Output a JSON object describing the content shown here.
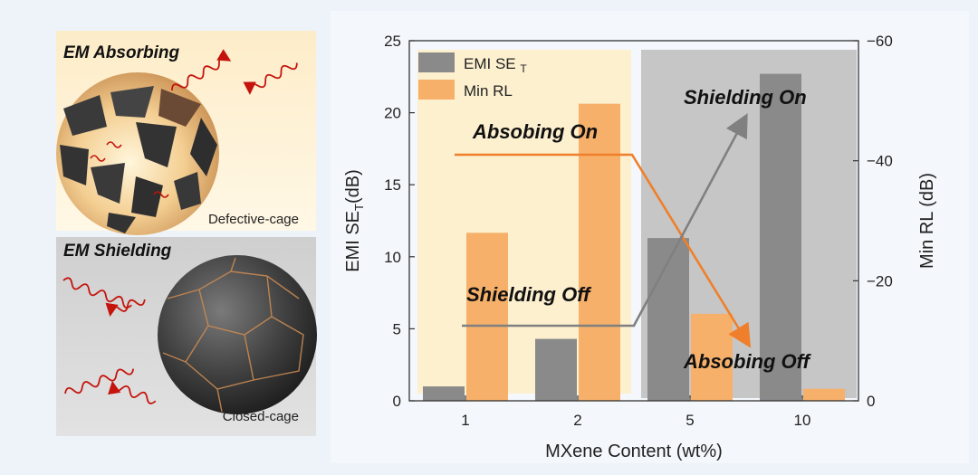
{
  "colors": {
    "background": "#eef3f9",
    "se_bar": "#8a8a8a",
    "rl_bar": "#f6b06a",
    "absorb_region": "#fdf0cf",
    "shield_region": "#bdbdbd",
    "absorb_arrow": "#ef7f2a",
    "shield_arrow": "#808080",
    "wave": "#c4140c"
  },
  "left_panels": {
    "absorbing": {
      "title": "EM  Absorbing",
      "caption": "Defective-cage",
      "icon": "defective-cage-sphere-icon"
    },
    "shielding": {
      "title": "EM Shielding",
      "caption": "Closed-cage",
      "icon": "closed-cage-sphere-icon"
    }
  },
  "chart_data": {
    "type": "bar",
    "categories": [
      "1",
      "2",
      "5",
      "10"
    ],
    "xlabel": "MXene Content (wt%)",
    "ylabel_left": "EMI SE",
    "ylabel_left_sub": "T",
    "ylabel_left_unit": "(dB)",
    "ylabel_right": "Min RL (dB)",
    "y_left_range": [
      0,
      25
    ],
    "y_left_ticks": [
      "0",
      "5",
      "10",
      "15",
      "20",
      "25"
    ],
    "y_right_range": [
      0,
      -60
    ],
    "y_right_ticks": [
      "0",
      "−20",
      "−40",
      "−60"
    ],
    "series": [
      {
        "name": "EMI SE",
        "name_sub": "T",
        "axis": "left",
        "values": [
          1.0,
          4.3,
          11.3,
          22.7
        ]
      },
      {
        "name": "Min  RL",
        "axis": "right",
        "values": [
          -28,
          -49.5,
          -14.5,
          -2
        ]
      }
    ],
    "legend_position": "top-left",
    "annotations": {
      "absorbing_on": "Absobing On",
      "absorbing_off": "Absobing Off",
      "shielding_on": "Shielding On",
      "shielding_off": "Shielding Off"
    }
  }
}
